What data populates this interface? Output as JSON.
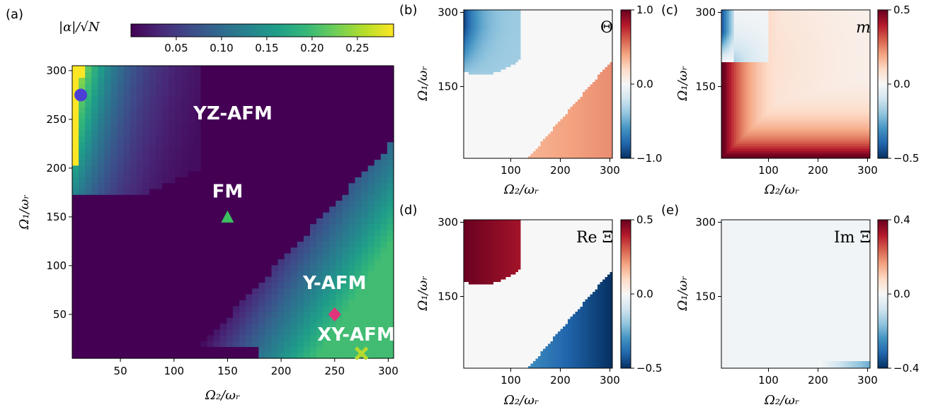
{
  "colors": {
    "viridis": [
      "#440154",
      "#482878",
      "#3e4a89",
      "#31688e",
      "#26828e",
      "#1f9e89",
      "#35b779",
      "#6ece58",
      "#b5de2b",
      "#fde725"
    ],
    "rdbu": [
      "#053061",
      "#2166ac",
      "#4393c3",
      "#92c5de",
      "#d1e5f0",
      "#f7f7f7",
      "#fddbc7",
      "#f4a582",
      "#d6604d",
      "#b2182b",
      "#67001f"
    ],
    "phase_text": "#ffffff",
    "marker_circle": "#4b3fd6",
    "marker_triangle": "#3cc061",
    "marker_diamond": "#e0357a",
    "marker_cross": "#b5d92e"
  },
  "chart_data": [
    {
      "panel_label": "(a)",
      "type": "heatmap",
      "field": "|α|/√N",
      "colorbar": {
        "label": "|α|/√N",
        "ticks": [
          "0.05",
          "0.10",
          "0.15",
          "0.20",
          "0.25"
        ],
        "range": [
          0.0,
          0.29
        ],
        "tick_values": [
          0.05,
          0.1,
          0.15,
          0.2,
          0.25
        ]
      },
      "xlabel": "Ω₂/ωᵣ",
      "ylabel": "Ω₁/ωᵣ",
      "x_ticks": [
        "50",
        "100",
        "150",
        "200",
        "250",
        "300"
      ],
      "x_tick_values": [
        50,
        100,
        150,
        200,
        250,
        300
      ],
      "y_ticks": [
        "50",
        "100",
        "150",
        "200",
        "250",
        "300"
      ],
      "y_tick_values": [
        50,
        100,
        150,
        200,
        250,
        300
      ],
      "xlim": [
        5,
        305
      ],
      "ylim": [
        5,
        305
      ],
      "phases": [
        {
          "name": "YZ-AFM",
          "label_at": [
            155,
            250
          ]
        },
        {
          "name": "FM",
          "label_at": [
            150,
            170
          ]
        },
        {
          "name": "Y-AFM",
          "label_at": [
            250,
            76
          ]
        },
        {
          "name": "XY-AFM",
          "label_at": [
            270,
            23
          ]
        }
      ],
      "markers": [
        {
          "shape": "circle",
          "x": 13,
          "y": 275
        },
        {
          "shape": "triangle",
          "x": 150,
          "y": 150
        },
        {
          "shape": "diamond",
          "x": 250,
          "y": 50
        },
        {
          "shape": "cross",
          "x": 275,
          "y": 10
        }
      ]
    },
    {
      "panel_label": "(b)",
      "type": "heatmap",
      "field": "Θ",
      "symbol": "Θ",
      "colorbar": {
        "ticks": [
          "1.0",
          "0.0",
          "−1.0"
        ],
        "tick_values": [
          1.0,
          0.0,
          -1.0
        ],
        "range": [
          -1.0,
          1.0
        ]
      },
      "xlabel": "Ω₂/ωᵣ",
      "ylabel": "Ω₁/ωᵣ",
      "x_ticks": [
        "100",
        "200",
        "300"
      ],
      "x_tick_values": [
        100,
        200,
        300
      ],
      "y_ticks": [
        "300",
        "150"
      ],
      "y_tick_values": [
        300,
        150
      ],
      "xlim": [
        5,
        305
      ],
      "ylim": [
        5,
        305
      ]
    },
    {
      "panel_label": "(c)",
      "type": "heatmap",
      "field": "m",
      "symbol": "m",
      "colorbar": {
        "ticks": [
          "0.5",
          "0.0",
          "−0.5"
        ],
        "tick_values": [
          0.5,
          0.0,
          -0.5
        ],
        "range": [
          -0.5,
          0.5
        ]
      },
      "xlabel": "Ω₂/ωᵣ",
      "ylabel": "Ω₁/ωᵣ",
      "x_ticks": [
        "100",
        "200",
        "300"
      ],
      "x_tick_values": [
        100,
        200,
        300
      ],
      "y_ticks": [
        "300",
        "150"
      ],
      "y_tick_values": [
        300,
        150
      ],
      "xlim": [
        5,
        305
      ],
      "ylim": [
        5,
        305
      ]
    },
    {
      "panel_label": "(d)",
      "type": "heatmap",
      "field": "Re Ξ",
      "symbol": "Re Ξ",
      "colorbar": {
        "ticks": [
          "0.5",
          "0.0",
          "−0.5"
        ],
        "tick_values": [
          0.5,
          0.0,
          -0.5
        ],
        "range": [
          -0.5,
          0.5
        ]
      },
      "xlabel": "Ω₂/ωᵣ",
      "ylabel": "Ω₁/ωᵣ",
      "x_ticks": [
        "100",
        "200",
        "300"
      ],
      "x_tick_values": [
        100,
        200,
        300
      ],
      "y_ticks": [
        "300",
        "150"
      ],
      "y_tick_values": [
        300,
        150
      ],
      "xlim": [
        5,
        305
      ],
      "ylim": [
        5,
        305
      ]
    },
    {
      "panel_label": "(e)",
      "type": "heatmap",
      "field": "Im Ξ",
      "symbol": "Im Ξ",
      "colorbar": {
        "ticks": [
          "0.4",
          "0.0",
          "−0.4"
        ],
        "tick_values": [
          0.4,
          0.0,
          -0.4
        ],
        "range": [
          -0.4,
          0.4
        ]
      },
      "xlabel": "Ω₂/ωᵣ",
      "ylabel": "Ω₁/ωᵣ",
      "x_ticks": [
        "100",
        "200",
        "300"
      ],
      "x_tick_values": [
        100,
        200,
        300
      ],
      "y_ticks": [
        "300",
        "150"
      ],
      "y_tick_values": [
        300,
        150
      ],
      "xlim": [
        5,
        305
      ],
      "ylim": [
        5,
        305
      ]
    }
  ]
}
